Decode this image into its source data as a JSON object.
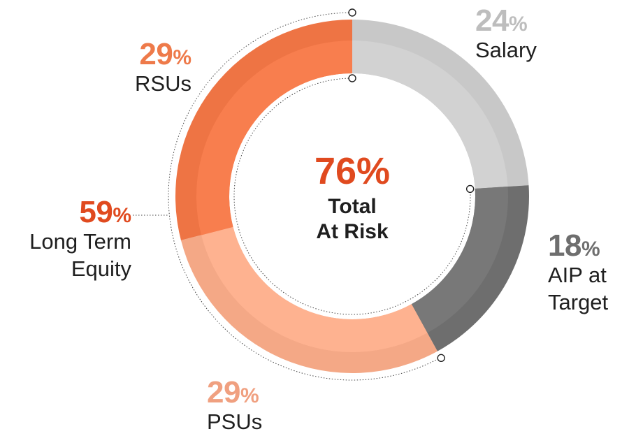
{
  "chart_data": {
    "type": "pie",
    "variant": "donut",
    "center": {
      "value": "76",
      "unit": "%",
      "line1": "Total",
      "line2": "At Risk"
    },
    "slices": [
      {
        "label": "Salary",
        "value": 24,
        "display": "24",
        "unit": "%",
        "color": "#c8c8c8",
        "text_color": "#bdbdbd"
      },
      {
        "label_line1": "AIP at",
        "label_line2": "Target",
        "value": 18,
        "display": "18",
        "unit": "%",
        "color": "#6e6e6e",
        "text_color": "#6e6e6e"
      },
      {
        "label": "PSUs",
        "value": 29,
        "display": "29",
        "unit": "%",
        "color": "#f4a886",
        "text_color": "#f0a080"
      },
      {
        "label": "RSUs",
        "value": 29,
        "display": "29",
        "unit": "%",
        "color": "#ee7444",
        "text_color": "#ee7a4a"
      }
    ],
    "group": {
      "label_line1": "Long Term",
      "label_line2": "Equity",
      "display": "59",
      "unit": "%",
      "text_color": "#e04a1f"
    }
  }
}
